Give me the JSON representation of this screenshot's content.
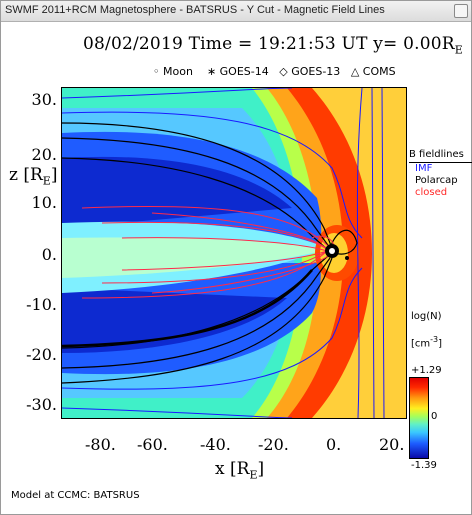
{
  "window": {
    "title": "SWMF 2011+RCM Magnetosphere - BATSRUS - Y Cut - Magnetic Field Lines"
  },
  "plot": {
    "headline": "08/02/2019 Time = 19:21:53 UT y= 0.00R",
    "headline_sub": "E",
    "legend": [
      {
        "symbol": "◦",
        "label": "Moon"
      },
      {
        "symbol": "∗",
        "label": "GOES-14"
      },
      {
        "symbol": "◇",
        "label": "GOES-13"
      },
      {
        "symbol": "△",
        "label": "COMS"
      }
    ],
    "y_axis_label": "z [R",
    "y_axis_label_sub": "E",
    "y_axis_label_end": "]",
    "x_axis_label": "x [R",
    "x_axis_label_sub": "E",
    "x_axis_label_end": "]",
    "y_ticks": [
      "30.",
      "20.",
      "10.",
      "0.",
      "-10.",
      "-20.",
      "-30."
    ],
    "x_ticks": [
      "-80.",
      "-60.",
      "-40.",
      "-20.",
      "0.",
      "20."
    ],
    "fieldlines": {
      "title": "B fieldlines",
      "items": [
        {
          "label": "IMF",
          "color": "#1a1aff"
        },
        {
          "label": "Polarcap",
          "color": "#000000"
        },
        {
          "label": "closed",
          "color": "#ff2a2a"
        }
      ]
    },
    "colorbar": {
      "title": "log(N)",
      "unit": "[cm",
      "unit_sup": "-3",
      "unit_end": "]",
      "max": "+1.29",
      "mid": "0",
      "min": "-1.39"
    },
    "footer": "Model at CCMC: BATSRUS",
    "colors": {
      "background_sheath": "#ffc830",
      "bowshock": "#ff2a00",
      "lobe": "#1f5cff",
      "plasmasheet": "#7ff0ff"
    }
  }
}
